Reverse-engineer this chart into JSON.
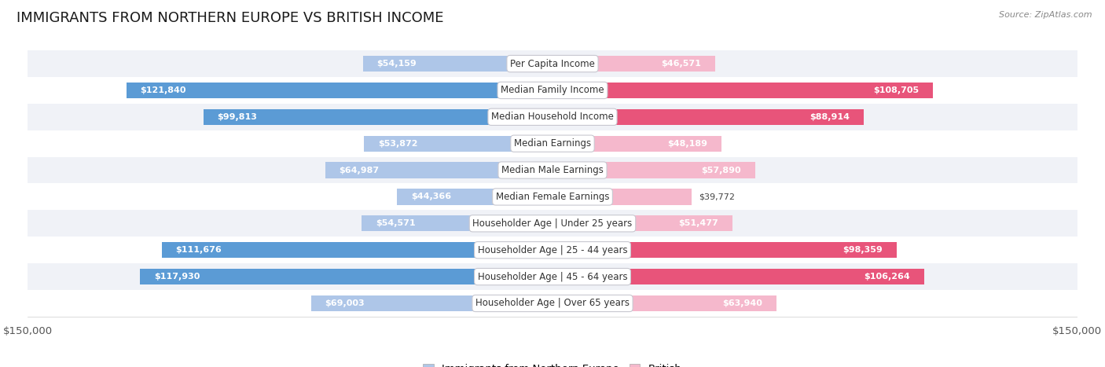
{
  "title": "IMMIGRANTS FROM NORTHERN EUROPE VS BRITISH INCOME",
  "source": "Source: ZipAtlas.com",
  "categories": [
    "Per Capita Income",
    "Median Family Income",
    "Median Household Income",
    "Median Earnings",
    "Median Male Earnings",
    "Median Female Earnings",
    "Householder Age | Under 25 years",
    "Householder Age | 25 - 44 years",
    "Householder Age | 45 - 64 years",
    "Householder Age | Over 65 years"
  ],
  "left_values": [
    54159,
    121840,
    99813,
    53872,
    64987,
    44366,
    54571,
    111676,
    117930,
    69003
  ],
  "right_values": [
    46571,
    108705,
    88914,
    48189,
    57890,
    39772,
    51477,
    98359,
    106264,
    63940
  ],
  "left_labels": [
    "$54,159",
    "$121,840",
    "$99,813",
    "$53,872",
    "$64,987",
    "$44,366",
    "$54,571",
    "$111,676",
    "$117,930",
    "$69,003"
  ],
  "right_labels": [
    "$46,571",
    "$108,705",
    "$88,914",
    "$48,189",
    "$57,890",
    "$39,772",
    "$51,477",
    "$98,359",
    "$106,264",
    "$63,940"
  ],
  "left_color_light": "#aec6e8",
  "left_color_dark": "#5b9bd5",
  "right_color_light": "#f5b8cc",
  "right_color_dark": "#e8547a",
  "row_bg_light": "#f0f2f7",
  "row_bg_white": "#ffffff",
  "max_value": 150000,
  "dark_threshold": 80000,
  "left_legend": "Immigrants from Northern Europe",
  "right_legend": "British",
  "title_fontsize": 13,
  "source_fontsize": 8,
  "axis_fontsize": 9.5,
  "bar_label_fontsize": 8,
  "category_fontsize": 8.5
}
